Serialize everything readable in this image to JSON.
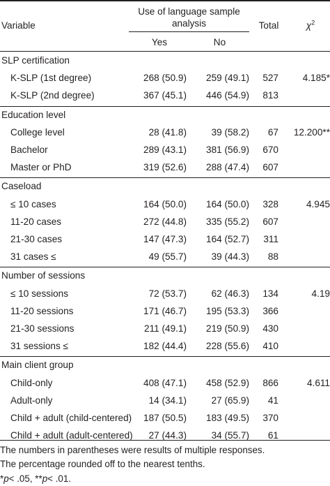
{
  "header": {
    "variable": "Variable",
    "group_title_line1": "Use of language sample",
    "group_title_line2": "analysis",
    "yes": "Yes",
    "no": "No",
    "total": "Total",
    "chi": "χ",
    "chi_sup": "2"
  },
  "sections": [
    {
      "title": "SLP certification",
      "rows": [
        {
          "label": "K-SLP (1st degree)",
          "yes": "268 (50.9)",
          "no": "259 (49.1)",
          "total": "527",
          "chi": "4.185*"
        },
        {
          "label": "K-SLP (2nd degree)",
          "yes": "367 (45.1)",
          "no": "446 (54.9)",
          "total": "813",
          "chi": ""
        }
      ]
    },
    {
      "title": "Education level",
      "rows": [
        {
          "label": "College level",
          "yes": "28 (41.8)",
          "no": "39 (58.2)",
          "total": "67",
          "chi": "12.200**"
        },
        {
          "label": "Bachelor",
          "yes": "289 (43.1)",
          "no": "381 (56.9)",
          "total": "670",
          "chi": ""
        },
        {
          "label": "Master or PhD",
          "yes": "319 (52.6)",
          "no": "288 (47.4)",
          "total": "607",
          "chi": ""
        }
      ]
    },
    {
      "title": "Caseload",
      "rows": [
        {
          "label": "≤ 10 cases",
          "yes": "164 (50.0)",
          "no": "164 (50.0)",
          "total": "328",
          "chi": "4.945"
        },
        {
          "label": "11-20 cases",
          "yes": "272 (44.8)",
          "no": "335 (55.2)",
          "total": "607",
          "chi": ""
        },
        {
          "label": "21-30 cases",
          "yes": "147 (47.3)",
          "no": "164 (52.7)",
          "total": "311",
          "chi": ""
        },
        {
          "label": "31 cases ≤",
          "yes": "49 (55.7)",
          "no": "39 (44.3)",
          "total": "88",
          "chi": ""
        }
      ]
    },
    {
      "title": "Number of sessions",
      "rows": [
        {
          "label": "≤ 10 sessions",
          "yes": "72 (53.7)",
          "no": "62 (46.3)",
          "total": "134",
          "chi": "4.19"
        },
        {
          "label": "11-20 sessions",
          "yes": "171 (46.7)",
          "no": "195 (53.3)",
          "total": "366",
          "chi": ""
        },
        {
          "label": "21-30 sessions",
          "yes": "211 (49.1)",
          "no": "219 (50.9)",
          "total": "430",
          "chi": ""
        },
        {
          "label": "31 sessions ≤",
          "yes": "182 (44.4)",
          "no": "228 (55.6)",
          "total": "410",
          "chi": ""
        }
      ]
    },
    {
      "title": "Main client group",
      "rows": [
        {
          "label": "Child-only",
          "yes": "408 (47.1)",
          "no": "458 (52.9)",
          "total": "866",
          "chi": "4.611"
        },
        {
          "label": "Adult-only",
          "yes": "14 (34.1)",
          "no": "27 (65.9)",
          "total": "41",
          "chi": ""
        },
        {
          "label": "Child + adult (child-centered)",
          "yes": "187 (50.5)",
          "no": "183 (49.5)",
          "total": "370",
          "chi": ""
        },
        {
          "label": "Child + adult (adult-centered)",
          "yes": "27 (44.3)",
          "no": "34 (55.7)",
          "total": "61",
          "chi": ""
        }
      ]
    }
  ],
  "footnotes": {
    "line1": "The numbers in parentheses were results of multiple responses.",
    "line2": "The percentage rounded off to the nearest tenths.",
    "sig_p": "p",
    "sig_1": "*",
    "sig_2": "< .05, **",
    "sig_3": "< .01."
  }
}
